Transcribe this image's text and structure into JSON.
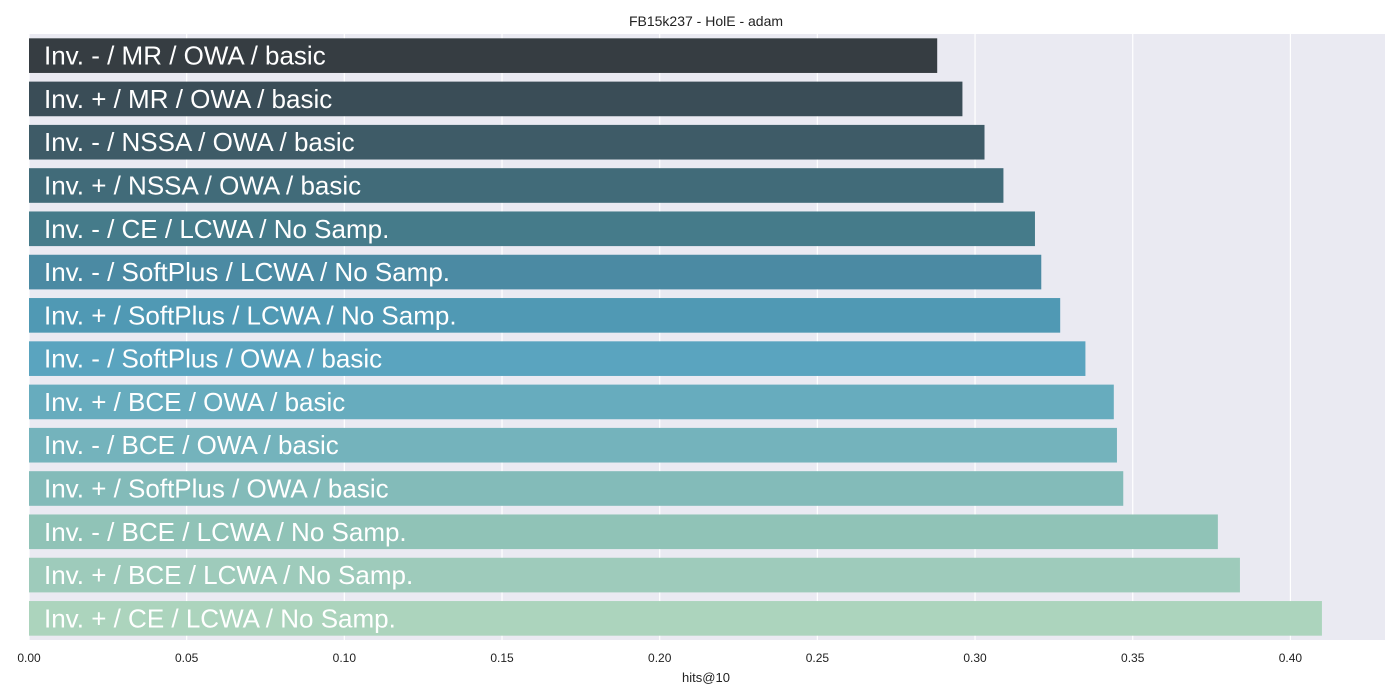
{
  "chart_data": {
    "type": "bar",
    "orientation": "horizontal",
    "title": "FB15k237 - HolE - adam",
    "xlabel": "hits@10",
    "ylabel": "",
    "xlim": [
      0.0,
      0.43
    ],
    "xticks": [
      "0.00",
      "0.05",
      "0.10",
      "0.15",
      "0.20",
      "0.25",
      "0.30",
      "0.35",
      "0.40"
    ],
    "grid": true,
    "background_color": "#eaeaf2",
    "categories": [
      "Inv. - / MR / OWA / basic",
      "Inv. + / MR / OWA / basic",
      "Inv. - / NSSA / OWA / basic",
      "Inv. + / NSSA / OWA / basic",
      "Inv. - / CE / LCWA / No Samp.",
      "Inv. - / SoftPlus / LCWA / No Samp.",
      "Inv. + / SoftPlus / LCWA / No Samp.",
      "Inv. - / SoftPlus / OWA / basic",
      "Inv. + / BCE / OWA / basic",
      "Inv. - / BCE / OWA / basic",
      "Inv. + / SoftPlus / OWA / basic",
      "Inv. - / BCE / LCWA / No Samp.",
      "Inv. + / BCE / LCWA / No Samp.",
      "Inv. + / CE / LCWA / No Samp."
    ],
    "values": [
      0.288,
      0.296,
      0.303,
      0.309,
      0.319,
      0.321,
      0.327,
      0.335,
      0.344,
      0.345,
      0.347,
      0.377,
      0.384,
      0.41
    ],
    "colors": [
      "#363d42",
      "#3a4d57",
      "#3e5b67",
      "#416b79",
      "#457b8a",
      "#4b8aa3",
      "#5099b4",
      "#5aa4bf",
      "#67acbe",
      "#74b3bc",
      "#83bbb9",
      "#90c3b7",
      "#9ecbbb",
      "#acd4bd"
    ]
  }
}
